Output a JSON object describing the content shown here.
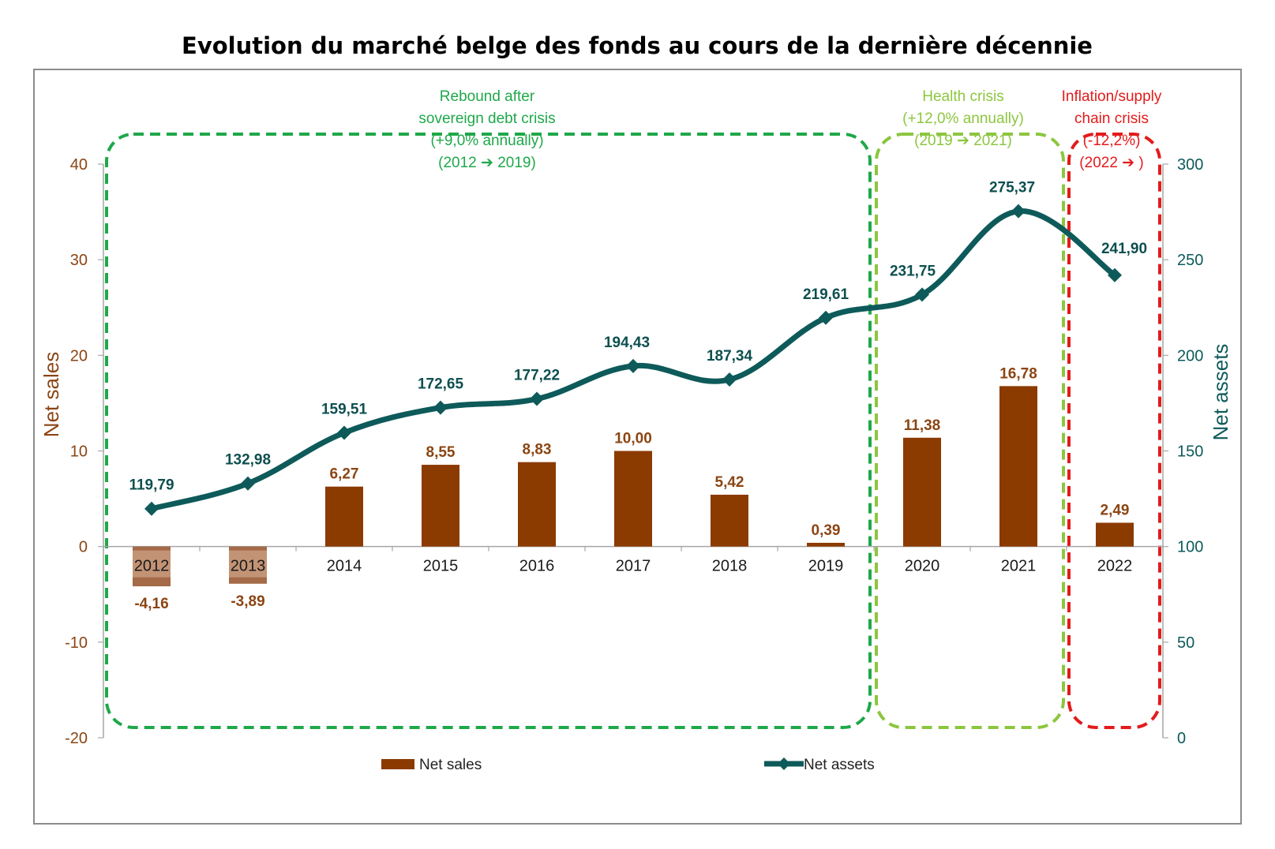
{
  "chart_data": {
    "type": "bar+line",
    "title": "Evolution du marché belge des fonds au cours de la dernière décennie",
    "categories": [
      "2012",
      "2013",
      "2014",
      "2015",
      "2016",
      "2017",
      "2018",
      "2019",
      "2020",
      "2021",
      "2022"
    ],
    "series": [
      {
        "name": "Net sales",
        "type": "bar",
        "axis": "left",
        "color": "#8B3A00",
        "values": [
          -4.16,
          -3.89,
          6.27,
          8.55,
          8.83,
          10.0,
          5.42,
          0.39,
          11.38,
          16.78,
          2.49
        ],
        "labels": [
          "-4,16",
          "-3,89",
          "6,27",
          "8,55",
          "8,83",
          "10,00",
          "5,42",
          "0,39",
          "11,38",
          "16,78",
          "2,49"
        ]
      },
      {
        "name": "Net assets",
        "type": "line",
        "axis": "right",
        "color": "#0E5A5A",
        "values": [
          119.79,
          132.98,
          159.51,
          172.65,
          177.22,
          194.43,
          187.34,
          219.61,
          231.75,
          275.37,
          241.9
        ],
        "labels": [
          "119,79",
          "132,98",
          "159,51",
          "172,65",
          "177,22",
          "194,43",
          "187,34",
          "219,61",
          "231,75",
          "275,37",
          "241,90"
        ]
      }
    ],
    "y_left": {
      "label": "Net sales",
      "range": [
        -20,
        40
      ],
      "ticks": [
        "-20",
        "-10",
        "0",
        "10",
        "20",
        "30",
        "40"
      ],
      "color": "#8B4513"
    },
    "y_right": {
      "label": "Net assets",
      "range": [
        0,
        300
      ],
      "ticks": [
        "0",
        "50",
        "100",
        "150",
        "200",
        "250",
        "300"
      ],
      "color": "#0E5A5A"
    },
    "legend": {
      "position": "bottom",
      "items": [
        "Net sales",
        "Net assets"
      ]
    },
    "periods": [
      {
        "from": "2012",
        "to": "2019",
        "color": "#1FA84A",
        "lines": [
          "Rebound after",
          "sovereign debt crisis",
          "(+9,0% annually)",
          "(2012 ➔ 2019)"
        ]
      },
      {
        "from": "2020",
        "to": "2021",
        "color": "#8CC63F",
        "lines": [
          "Health crisis",
          "(+12,0% annually)",
          "(2019 ➔ 2021)"
        ]
      },
      {
        "from": "2022",
        "to": "2022",
        "color": "#E31B1B",
        "lines": [
          "Inflation/supply",
          "chain crisis",
          "(-12,2%)",
          "(2022 ➔ )"
        ]
      }
    ]
  }
}
